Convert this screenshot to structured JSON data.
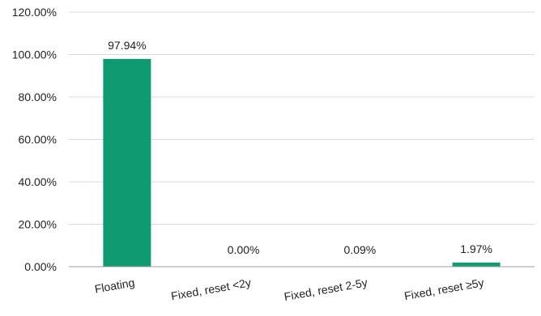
{
  "chart_data": {
    "type": "bar",
    "categories": [
      "Floating",
      "Fixed, reset <2y",
      "Fixed, reset 2-5y",
      "Fixed, reset ≥5y"
    ],
    "values": [
      97.94,
      0.0,
      0.09,
      1.97
    ],
    "data_labels": [
      "97.94%",
      "0.00%",
      "0.09%",
      "1.97%"
    ],
    "title": "",
    "xlabel": "",
    "ylabel": "",
    "ylim": [
      0,
      120
    ],
    "y_ticks": [
      0,
      20,
      40,
      60,
      80,
      100,
      120
    ],
    "y_tick_labels": [
      "0.00%",
      "20.00%",
      "40.00%",
      "60.00%",
      "80.00%",
      "100.00%",
      "120.00%"
    ],
    "bar_color": "#0f9a72",
    "grid": true,
    "legend": "none"
  }
}
